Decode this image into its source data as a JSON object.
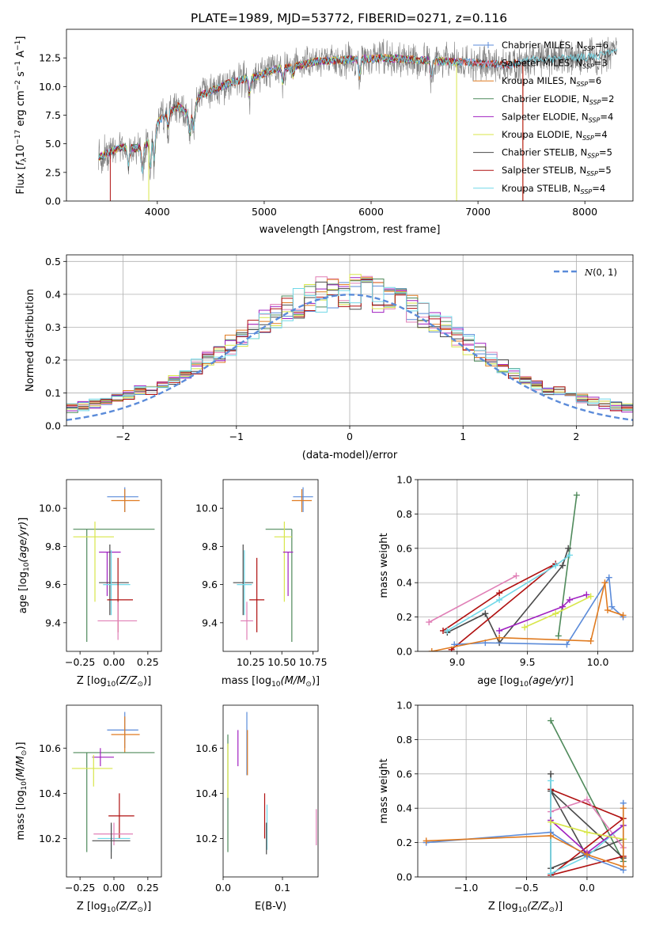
{
  "figure": {
    "title": "PLATE=1989, MJD=53772, FIBERID=0271, z=0.116"
  },
  "colors": {
    "chabrier_miles": "#5b8bd9",
    "salpeter_miles": "#e07fb6",
    "kroupa_miles": "#e07b20",
    "chabrier_elodie": "#4f8a5b",
    "salpeter_elodie": "#a020c0",
    "kroupa_elodie": "#d8e64a",
    "chabrier_stelib": "#4a4a4a",
    "salpeter_stelib": "#b01010",
    "kroupa_stelib": "#70d8e8",
    "observed": "#808080",
    "normal": "#5b8bd9"
  },
  "chart_data": [
    {
      "id": "spectrum",
      "type": "line",
      "title": "PLATE=1989, MJD=53772, FIBERID=0271, z=0.116",
      "xlabel": "wavelength [Angstrom, rest frame]",
      "ylabel": "Flux [f_λ10^-17 erg cm^-2 s^-1 A^-1]",
      "xlim": [
        3150,
        8450
      ],
      "ylim": [
        0,
        15
      ],
      "xticks": [
        "4000",
        "5000",
        "6000",
        "7000",
        "8000"
      ],
      "yticks": [
        "0.0",
        "2.5",
        "5.0",
        "7.5",
        "10.0",
        "12.5"
      ],
      "grid": false,
      "legend_position": "right",
      "legend": [
        "Chabrier MILES, N_SSP=6",
        "Salpeter MILES, N_SSP=3",
        "Kroupa MILES, N_SSP=6",
        "Chabrier ELODIE, N_SSP=2",
        "Salpeter ELODIE, N_SSP=4",
        "Kroupa ELODIE, N_SSP=4",
        "Chabrier STELIB, N_SSP=5",
        "Salpeter STELIB, N_SSP=5",
        "Kroupa STELIB, N_SSP=4"
      ],
      "continuum": {
        "x": [
          3450,
          3600,
          3700,
          3800,
          3900,
          4000,
          4100,
          4200,
          4300,
          4400,
          4500,
          4700,
          4900,
          5100,
          5300,
          5500,
          5700,
          5900,
          6100,
          6300,
          6500,
          6700,
          6900,
          7100,
          7300,
          7500,
          7700,
          7900,
          8100,
          8300
        ],
        "y": [
          3.8,
          4.5,
          4.7,
          4.6,
          5.0,
          6.8,
          7.8,
          8.3,
          7.4,
          9.2,
          9.6,
          10.4,
          10.8,
          11.5,
          11.8,
          12.2,
          12.3,
          12.4,
          12.5,
          12.4,
          12.3,
          12.2,
          12.1,
          12.0,
          11.9,
          12.3,
          12.4,
          12.5,
          12.6,
          13.0
        ]
      }
    },
    {
      "id": "residuals",
      "type": "histogram",
      "xlabel": "(data-model)/error",
      "ylabel": "Normed distribution",
      "xlim": [
        -2.5,
        2.5
      ],
      "ylim": [
        0,
        0.52
      ],
      "xticks": [
        "−2",
        "−1",
        "0",
        "1",
        "2"
      ],
      "yticks": [
        "0.0",
        "0.1",
        "0.2",
        "0.3",
        "0.4",
        "0.5"
      ],
      "grid": true,
      "legend_position": "top-right",
      "legend": [
        "N(0,1)"
      ],
      "bin_width": 0.1
    },
    {
      "id": "age_vs_z",
      "type": "errorbar",
      "xlabel": "Z [log10(Z/Z⊙)]",
      "ylabel": "age [log10(age/yr)]",
      "xlim": [
        -0.35,
        0.35
      ],
      "ylim": [
        9.25,
        10.15
      ],
      "xticks": [
        "−0.25",
        "0.00",
        "0.25"
      ],
      "yticks": [
        "9.4",
        "9.6",
        "9.8",
        "10.0"
      ],
      "points": [
        {
          "model": "chabrier_miles",
          "x": 0.08,
          "xerr": [
            0.13,
            0.1
          ],
          "y": 10.06,
          "yerr": [
            0.08,
            0.05
          ]
        },
        {
          "model": "kroupa_miles",
          "x": 0.08,
          "xerr": [
            0.1,
            0.11
          ],
          "y": 10.04,
          "yerr": [
            0.06,
            0.06
          ]
        },
        {
          "model": "chabrier_elodie",
          "x": -0.2,
          "xerr": [
            0.1,
            0.5
          ],
          "y": 9.89,
          "yerr": [
            0.59,
            0.0
          ]
        },
        {
          "model": "kroupa_elodie",
          "x": -0.14,
          "xerr": [
            0.16,
            0.14
          ],
          "y": 9.85,
          "yerr": [
            0.34,
            0.08
          ]
        },
        {
          "model": "salpeter_elodie",
          "x": -0.05,
          "xerr": [
            0.06,
            0.1
          ],
          "y": 9.77,
          "yerr": [
            0.23,
            0.0
          ]
        },
        {
          "model": "chabrier_stelib",
          "x": -0.03,
          "xerr": [
            0.08,
            0.14
          ],
          "y": 9.61,
          "yerr": [
            0.17,
            0.2
          ]
        },
        {
          "model": "kroupa_stelib",
          "x": -0.02,
          "xerr": [
            0.06,
            0.14
          ],
          "y": 9.6,
          "yerr": [
            0.16,
            0.18
          ]
        },
        {
          "model": "salpeter_stelib",
          "x": 0.03,
          "xerr": [
            0.08,
            0.11
          ],
          "y": 9.52,
          "yerr": [
            0.17,
            0.22
          ]
        },
        {
          "model": "salpeter_miles",
          "x": 0.03,
          "xerr": [
            0.15,
            0.14
          ],
          "y": 9.41,
          "yerr": [
            0.1,
            0.1
          ]
        }
      ]
    },
    {
      "id": "age_vs_mass",
      "type": "errorbar",
      "xlabel": "mass [log10(M/M⊙)]",
      "ylabel": "",
      "xlim": [
        10.03,
        10.79
      ],
      "ylim": [
        9.25,
        10.15
      ],
      "xticks": [
        "10.25",
        "10.50",
        "10.75"
      ],
      "yticks": [
        "9.4",
        "9.6",
        "9.8",
        "10.0"
      ],
      "points": [
        {
          "model": "chabrier_miles",
          "x": 10.67,
          "xerr": [
            0.08,
            0.08
          ],
          "y": 10.06,
          "yerr": [
            0.08,
            0.05
          ]
        },
        {
          "model": "kroupa_miles",
          "x": 10.66,
          "xerr": [
            0.08,
            0.08
          ],
          "y": 10.04,
          "yerr": [
            0.06,
            0.06
          ]
        },
        {
          "model": "chabrier_elodie",
          "x": 10.58,
          "xerr": [
            0.21,
            0.0
          ],
          "y": 9.89,
          "yerr": [
            0.59,
            0.0
          ]
        },
        {
          "model": "kroupa_elodie",
          "x": 10.52,
          "xerr": [
            0.08,
            0.06
          ],
          "y": 9.85,
          "yerr": [
            0.34,
            0.08
          ]
        },
        {
          "model": "salpeter_elodie",
          "x": 10.55,
          "xerr": [
            0.04,
            0.04
          ],
          "y": 9.77,
          "yerr": [
            0.23,
            0.0
          ]
        },
        {
          "model": "chabrier_stelib",
          "x": 10.19,
          "xerr": [
            0.08,
            0.08
          ],
          "y": 9.61,
          "yerr": [
            0.17,
            0.2
          ]
        },
        {
          "model": "kroupa_stelib",
          "x": 10.2,
          "xerr": [
            0.06,
            0.06
          ],
          "y": 9.6,
          "yerr": [
            0.16,
            0.18
          ]
        },
        {
          "model": "salpeter_stelib",
          "x": 10.3,
          "xerr": [
            0.06,
            0.06
          ],
          "y": 9.52,
          "yerr": [
            0.17,
            0.22
          ]
        },
        {
          "model": "salpeter_miles",
          "x": 10.22,
          "xerr": [
            0.05,
            0.05
          ],
          "y": 9.41,
          "yerr": [
            0.1,
            0.1
          ]
        }
      ]
    },
    {
      "id": "weight_vs_age",
      "type": "line",
      "xlabel": "age [log10(age/yr)]",
      "ylabel": "mass weight",
      "xlim": [
        8.72,
        10.25
      ],
      "ylim": [
        0,
        1.0
      ],
      "xticks": [
        "9.0",
        "9.5",
        "10.0"
      ],
      "yticks": [
        "0.0",
        "0.2",
        "0.4",
        "0.6",
        "0.8",
        "1.0"
      ],
      "grid": true,
      "series": [
        {
          "model": "chabrier_elodie",
          "x": [
            9.72,
            9.85
          ],
          "y": [
            0.09,
            0.91
          ]
        },
        {
          "model": "salpeter_miles",
          "x": [
            8.8,
            9.42
          ],
          "y": [
            0.17,
            0.44
          ]
        },
        {
          "model": "chabrier_stelib",
          "x": [
            8.93,
            9.2,
            9.3,
            9.75,
            9.79
          ],
          "y": [
            0.11,
            0.22,
            0.05,
            0.5,
            0.6
          ]
        },
        {
          "model": "salpeter_stelib",
          "x": [
            8.9,
            9.3,
            9.7,
            8.96
          ],
          "y": [
            0.12,
            0.34,
            0.51,
            0.01
          ]
        },
        {
          "model": "kroupa_stelib",
          "x": [
            8.93,
            9.3,
            9.7,
            9.8
          ],
          "y": [
            0.12,
            0.3,
            0.5,
            0.56
          ]
        },
        {
          "model": "salpeter_elodie",
          "x": [
            9.3,
            9.75,
            9.8,
            9.92
          ],
          "y": [
            0.12,
            0.26,
            0.3,
            0.33
          ]
        },
        {
          "model": "kroupa_elodie",
          "x": [
            9.48,
            9.7,
            9.95
          ],
          "y": [
            0.14,
            0.22,
            0.32
          ]
        },
        {
          "model": "chabrier_miles",
          "x": [
            8.98,
            9.2,
            9.78,
            10.08,
            10.1,
            10.18
          ],
          "y": [
            0.04,
            0.05,
            0.04,
            0.43,
            0.26,
            0.2
          ]
        },
        {
          "model": "kroupa_miles",
          "x": [
            8.82,
            9.3,
            9.95,
            10.05,
            10.07,
            10.18
          ],
          "y": [
            0.0,
            0.08,
            0.06,
            0.4,
            0.24,
            0.21
          ]
        }
      ]
    },
    {
      "id": "mass_vs_z",
      "type": "errorbar",
      "xlabel": "Z [log10(Z/Z⊙)]",
      "ylabel": "mass [log10(M/M⊙)]",
      "xlim": [
        -0.35,
        0.35
      ],
      "ylim": [
        10.03,
        10.79
      ],
      "xticks": [
        "−0.25",
        "0.00",
        "0.25"
      ],
      "yticks": [
        "10.2",
        "10.4",
        "10.6"
      ],
      "points": [
        {
          "model": "chabrier_miles",
          "x": 0.08,
          "xerr": [
            0.13,
            0.1
          ],
          "y": 10.68,
          "yerr": [
            0.08,
            0.08
          ]
        },
        {
          "model": "kroupa_miles",
          "x": 0.08,
          "xerr": [
            0.1,
            0.11
          ],
          "y": 10.66,
          "yerr": [
            0.08,
            0.08
          ]
        },
        {
          "model": "chabrier_elodie",
          "x": -0.2,
          "xerr": [
            0.1,
            0.5
          ],
          "y": 10.58,
          "yerr": [
            0.44,
            0.0
          ]
        },
        {
          "model": "salpeter_elodie",
          "x": -0.1,
          "xerr": [
            0.06,
            0.1
          ],
          "y": 10.56,
          "yerr": [
            0.04,
            0.04
          ]
        },
        {
          "model": "kroupa_elodie",
          "x": -0.15,
          "xerr": [
            0.16,
            0.14
          ],
          "y": 10.51,
          "yerr": [
            0.08,
            0.06
          ]
        },
        {
          "model": "salpeter_stelib",
          "x": 0.04,
          "xerr": [
            0.08,
            0.11
          ],
          "y": 10.3,
          "yerr": [
            0.1,
            0.1
          ]
        },
        {
          "model": "kroupa_stelib",
          "x": -0.02,
          "xerr": [
            0.1,
            0.14
          ],
          "y": 10.2,
          "yerr": [
            0.06,
            0.06
          ]
        },
        {
          "model": "salpeter_miles",
          "x": 0.0,
          "xerr": [
            0.15,
            0.14
          ],
          "y": 10.22,
          "yerr": [
            0.05,
            0.05
          ]
        },
        {
          "model": "chabrier_stelib",
          "x": -0.02,
          "xerr": [
            0.14,
            0.14
          ],
          "y": 10.19,
          "yerr": [
            0.08,
            0.08
          ]
        }
      ]
    },
    {
      "id": "mass_vs_ebv",
      "type": "errorbar",
      "xlabel": "E(B-V)",
      "ylabel": "",
      "xlim": [
        0.0,
        0.16
      ],
      "ylim": [
        10.03,
        10.79
      ],
      "xticks": [
        "0.0",
        "0.1"
      ],
      "yticks": [
        "10.2",
        "10.4",
        "10.6"
      ],
      "points": [
        {
          "model": "chabrier_elodie",
          "x": 0.008,
          "xerr": [
            0,
            0
          ],
          "y": 10.4,
          "yerr": [
            0.26,
            0.26
          ]
        },
        {
          "model": "kroupa_elodie",
          "x": 0.008,
          "xerr": [
            0,
            0
          ],
          "y": 10.5,
          "yerr": [
            0.12,
            0.12
          ]
        },
        {
          "model": "salpeter_elodie",
          "x": 0.025,
          "xerr": [
            0,
            0
          ],
          "y": 10.6,
          "yerr": [
            0.08,
            0.08
          ]
        },
        {
          "model": "chabrier_miles",
          "x": 0.04,
          "xerr": [
            0,
            0
          ],
          "y": 10.62,
          "yerr": [
            0.14,
            0.14
          ]
        },
        {
          "model": "kroupa_miles",
          "x": 0.041,
          "xerr": [
            0,
            0
          ],
          "y": 10.58,
          "yerr": [
            0.1,
            0.1
          ]
        },
        {
          "model": "salpeter_stelib",
          "x": 0.07,
          "xerr": [
            0,
            0
          ],
          "y": 10.3,
          "yerr": [
            0.1,
            0.1
          ]
        },
        {
          "model": "kroupa_stelib",
          "x": 0.074,
          "xerr": [
            0,
            0
          ],
          "y": 10.25,
          "yerr": [
            0.1,
            0.1
          ]
        },
        {
          "model": "chabrier_stelib",
          "x": 0.073,
          "xerr": [
            0,
            0
          ],
          "y": 10.2,
          "yerr": [
            0.07,
            0.07
          ]
        },
        {
          "model": "salpeter_miles",
          "x": 0.157,
          "xerr": [
            0,
            0
          ],
          "y": 10.25,
          "yerr": [
            0.08,
            0.08
          ]
        }
      ]
    },
    {
      "id": "weight_vs_z",
      "type": "line",
      "xlabel": "Z [log10(Z/Z⊙)]",
      "ylabel": "mass weight",
      "xlim": [
        -1.4,
        0.38
      ],
      "ylim": [
        0,
        1.0
      ],
      "xticks": [
        "−1.0",
        "−0.5",
        "0.0"
      ],
      "yticks": [
        "0.0",
        "0.2",
        "0.4",
        "0.6",
        "0.8",
        "1.0"
      ],
      "grid": true,
      "series": [
        {
          "model": "chabrier_elodie",
          "x": [
            -0.3,
            0.3
          ],
          "y": [
            0.91,
            0.09
          ]
        },
        {
          "model": "chabrier_stelib",
          "x": [
            -0.3,
            -0.3,
            0.3,
            0.3,
            -0.3,
            0.0
          ],
          "y": [
            0.6,
            0.05,
            0.22,
            0.11,
            0.5,
            0.12
          ]
        },
        {
          "model": "salpeter_stelib",
          "x": [
            -0.3,
            0.3,
            -0.3,
            0.3
          ],
          "y": [
            0.51,
            0.34,
            0.01,
            0.12
          ]
        },
        {
          "model": "salpeter_miles",
          "x": [
            -0.3,
            0.0,
            0.3
          ],
          "y": [
            0.38,
            0.45,
            0.17
          ]
        },
        {
          "model": "kroupa_stelib",
          "x": [
            -0.3,
            -0.3,
            0.0,
            0.3
          ],
          "y": [
            0.56,
            0.02,
            0.12,
            0.3
          ]
        },
        {
          "model": "salpeter_elodie",
          "x": [
            -0.3,
            0.0,
            0.3
          ],
          "y": [
            0.33,
            0.14,
            0.3
          ]
        },
        {
          "model": "kroupa_elodie",
          "x": [
            -0.3,
            0.0,
            0.3
          ],
          "y": [
            0.32,
            0.26,
            0.22
          ]
        },
        {
          "model": "chabrier_miles",
          "x": [
            -1.33,
            -0.3,
            0.0,
            0.3,
            0.3
          ],
          "y": [
            0.2,
            0.26,
            0.12,
            0.04,
            0.43
          ]
        },
        {
          "model": "kroupa_miles",
          "x": [
            -1.33,
            -0.3,
            0.0,
            0.3,
            0.3
          ],
          "y": [
            0.21,
            0.24,
            0.13,
            0.06,
            0.4
          ]
        }
      ]
    }
  ]
}
